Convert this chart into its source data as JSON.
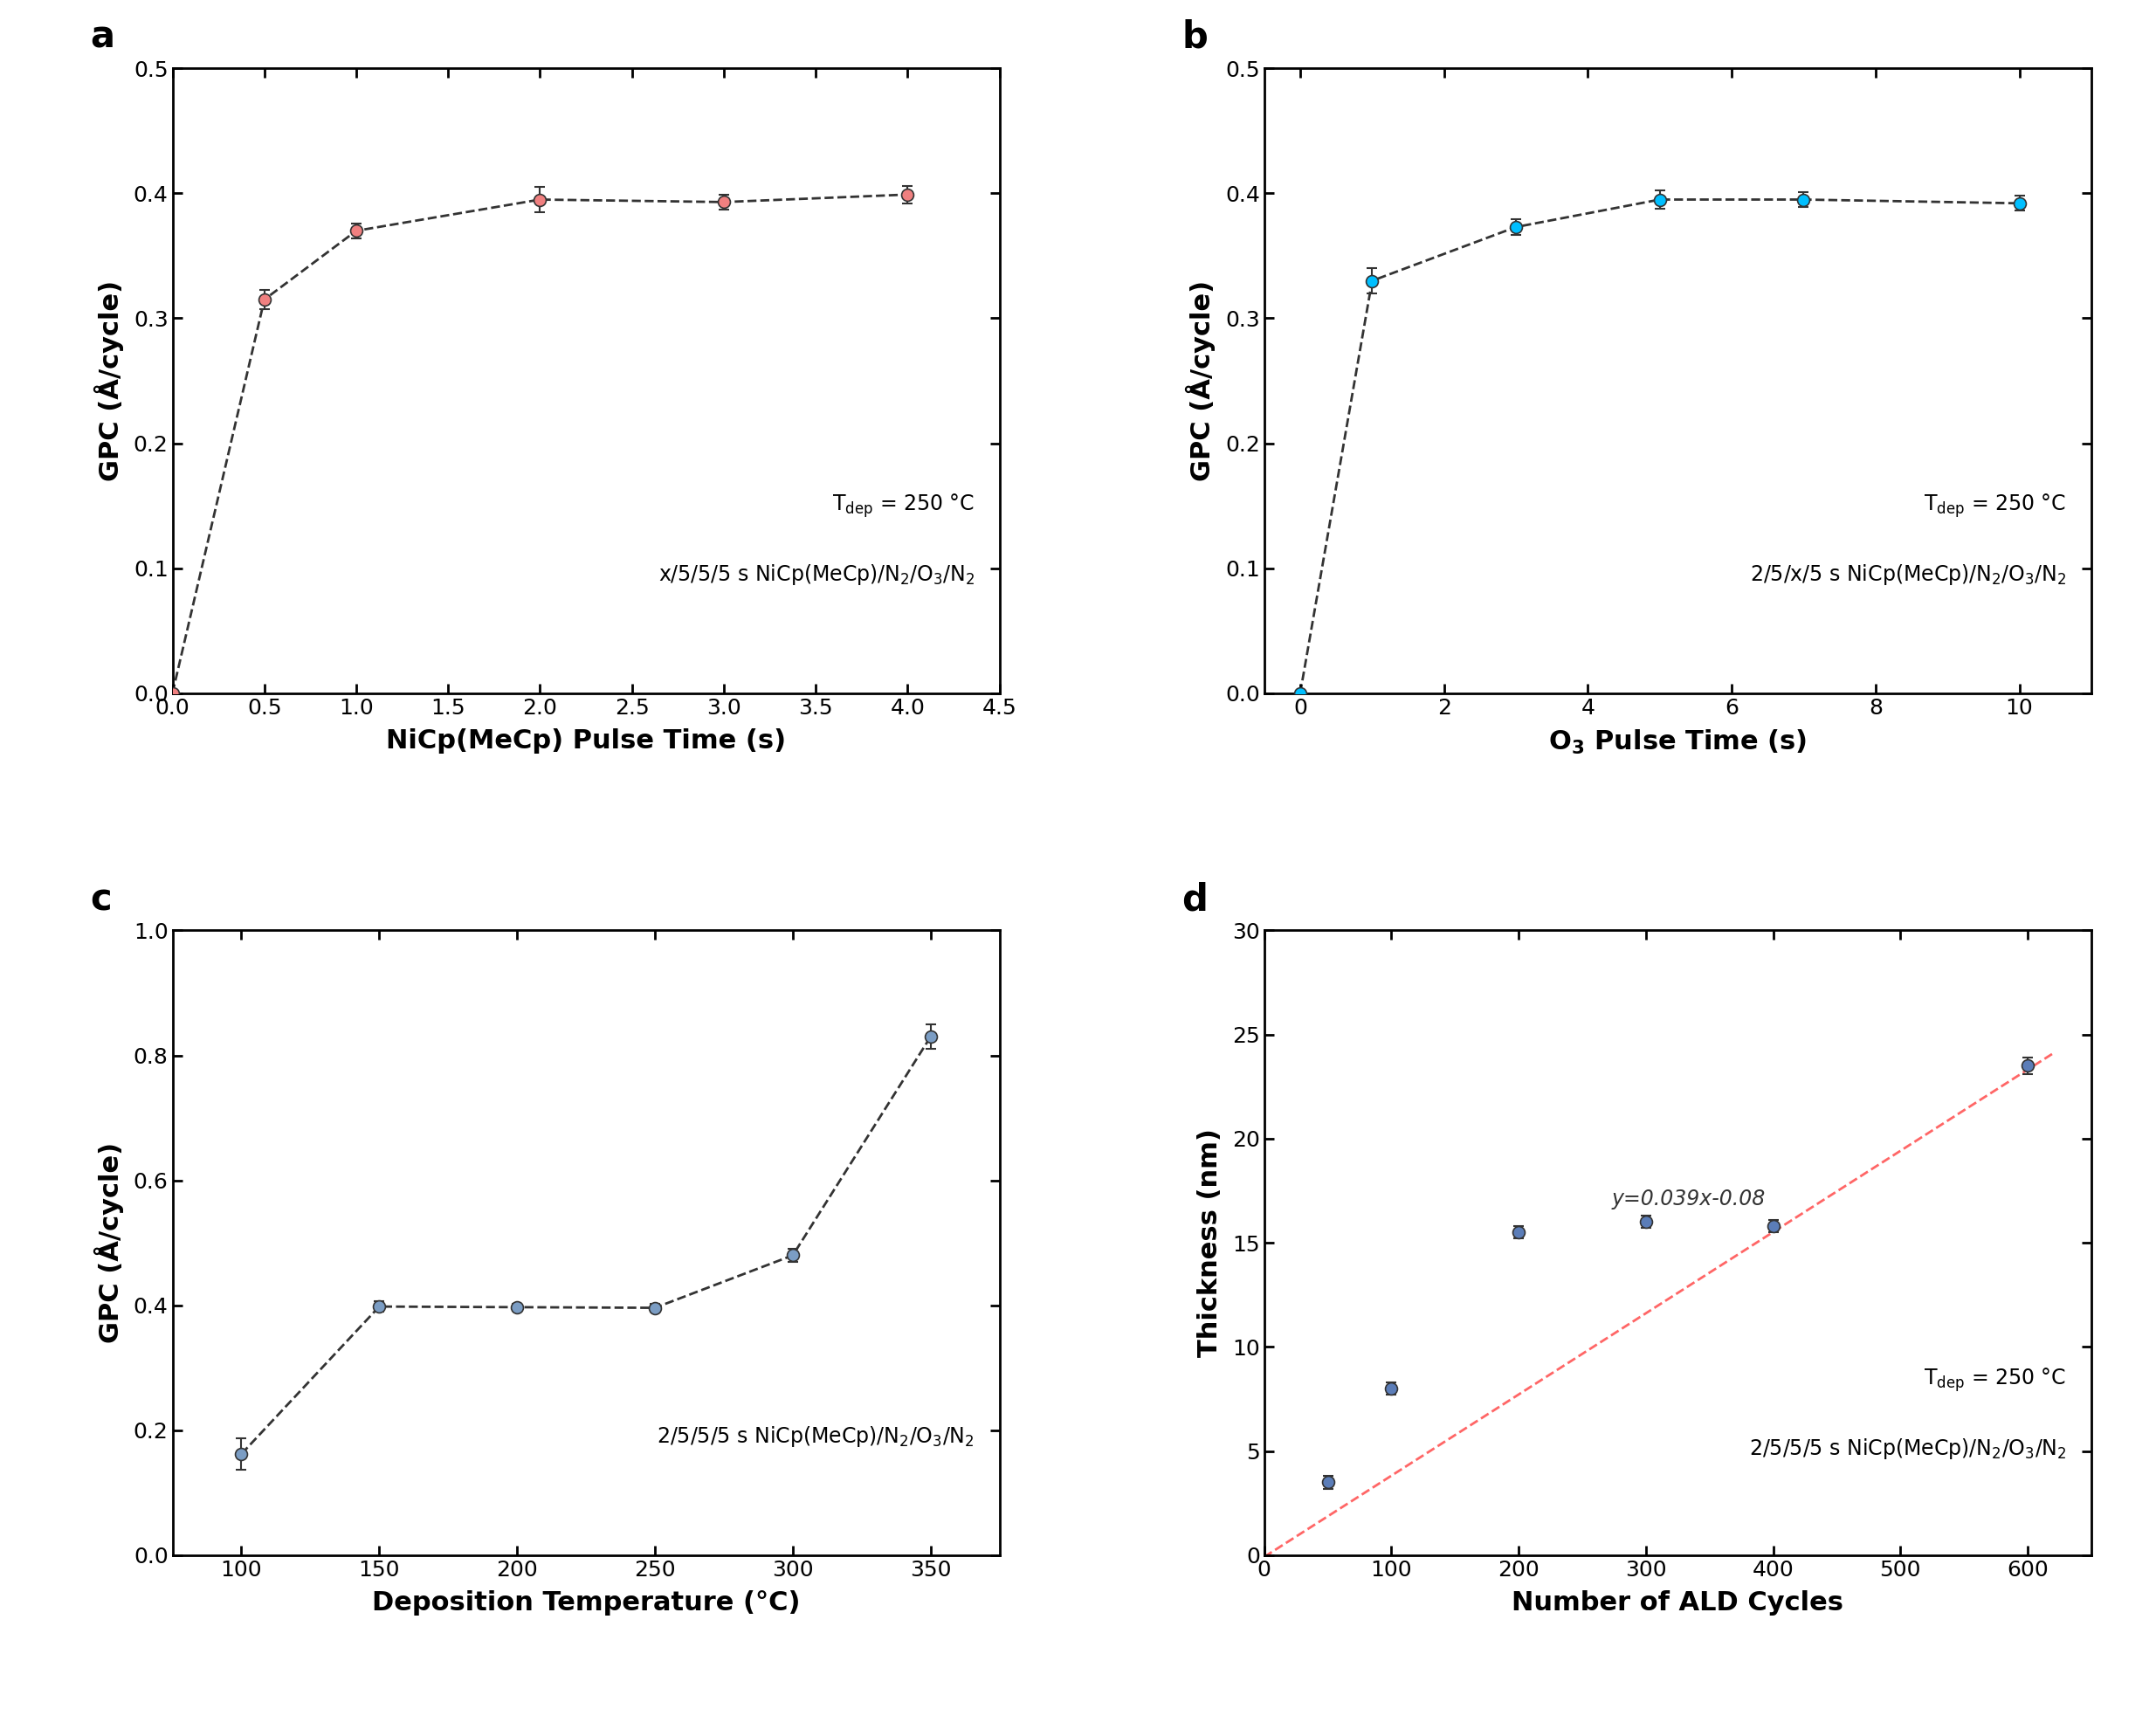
{
  "panel_a": {
    "x": [
      0.0,
      0.5,
      1.0,
      2.0,
      3.0,
      4.0
    ],
    "y": [
      0.0,
      0.315,
      0.37,
      0.395,
      0.393,
      0.399
    ],
    "yerr": [
      0.0,
      0.008,
      0.006,
      0.01,
      0.006,
      0.007
    ],
    "color": "#F08080",
    "xlabel": "NiCp(MeCp) Pulse Time (s)",
    "ylabel": "GPC (A/cycle)",
    "xlim": [
      0.0,
      4.5
    ],
    "ylim": [
      0.0,
      0.5
    ],
    "xticks": [
      0.0,
      0.5,
      1.0,
      1.5,
      2.0,
      2.5,
      3.0,
      3.5,
      4.0,
      4.5
    ],
    "yticks": [
      0.0,
      0.1,
      0.2,
      0.3,
      0.4,
      0.5
    ],
    "ann1": "T_dep = 250 C",
    "ann2": "x/5/5/5 s NiCp(MeCp)/N2/O3/N2",
    "label": "a"
  },
  "panel_b": {
    "x": [
      0.0,
      1.0,
      3.0,
      5.0,
      7.0,
      10.0
    ],
    "y": [
      0.0,
      0.33,
      0.373,
      0.395,
      0.395,
      0.392
    ],
    "yerr": [
      0.0,
      0.01,
      0.006,
      0.007,
      0.006,
      0.006
    ],
    "color": "#00BFFF",
    "xlabel": "O3 Pulse Time (s)",
    "ylabel": "GPC (A/cycle)",
    "xlim": [
      -0.5,
      11
    ],
    "ylim": [
      0.0,
      0.5
    ],
    "xticks": [
      0,
      2,
      4,
      6,
      8,
      10
    ],
    "yticks": [
      0.0,
      0.1,
      0.2,
      0.3,
      0.4,
      0.5
    ],
    "ann1": "T_dep = 250 C",
    "ann2": "2/5/x/5 s NiCp(MeCp)/N2/O3/N2",
    "label": "b"
  },
  "panel_c": {
    "x": [
      100,
      150,
      200,
      250,
      300,
      350
    ],
    "y": [
      0.162,
      0.398,
      0.397,
      0.396,
      0.48,
      0.83
    ],
    "yerr": [
      0.025,
      0.008,
      0.006,
      0.006,
      0.01,
      0.02
    ],
    "color": "#7B9DC4",
    "xlabel": "Deposition Temperature (C)",
    "ylabel": "GPC (A/cycle)",
    "xlim": [
      75,
      375
    ],
    "ylim": [
      0.0,
      1.0
    ],
    "xticks": [
      100,
      150,
      200,
      250,
      300,
      350
    ],
    "yticks": [
      0.0,
      0.2,
      0.4,
      0.6,
      0.8,
      1.0
    ],
    "ann1": "2/5/5/5 s NiCp(MeCp)/N2/O3/N2",
    "label": "c"
  },
  "panel_d": {
    "x": [
      50,
      100,
      200,
      300,
      400,
      600
    ],
    "y": [
      3.5,
      8.0,
      15.5,
      16.0,
      15.8,
      23.5
    ],
    "yerr": [
      0.3,
      0.3,
      0.3,
      0.3,
      0.3,
      0.4
    ],
    "color": "#5B7DB8",
    "fit_x": [
      0,
      620
    ],
    "fit_y": [
      -0.08,
      24.1
    ],
    "fit_color": "#FF6666",
    "xlabel": "Number of ALD Cycles",
    "ylabel": "Thickness (nm)",
    "xlim": [
      0,
      650
    ],
    "ylim": [
      0,
      30
    ],
    "xticks": [
      0,
      100,
      200,
      300,
      400,
      500,
      600
    ],
    "yticks": [
      0,
      5,
      10,
      15,
      20,
      25,
      30
    ],
    "ann_eq": "y=0.039x-0.08",
    "ann1": "T_dep = 250 C",
    "ann2": "2/5/5/5 s NiCp(MeCp)/N2/O3/N2",
    "label": "d"
  },
  "figure": {
    "bg_color": "#FFFFFF",
    "dash_color": "#333333",
    "dash_lw": 2.0,
    "ms": 10,
    "mec": "#333333",
    "mew": 1.2,
    "capsize": 4,
    "elw": 1.5,
    "tick_fs": 18,
    "label_fs": 22,
    "ann_fs": 17,
    "panel_fs": 30
  }
}
